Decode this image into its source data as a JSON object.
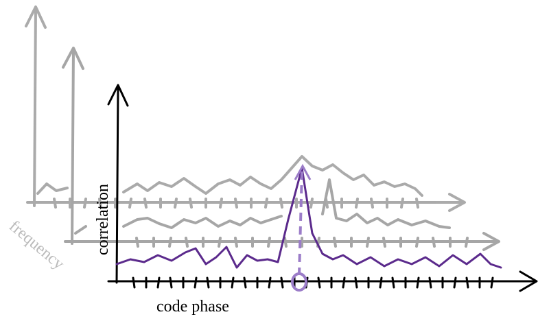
{
  "labels": {
    "y_axis": "correlation",
    "depth_axis": "frequency",
    "x_axis": "code phase"
  }
}
